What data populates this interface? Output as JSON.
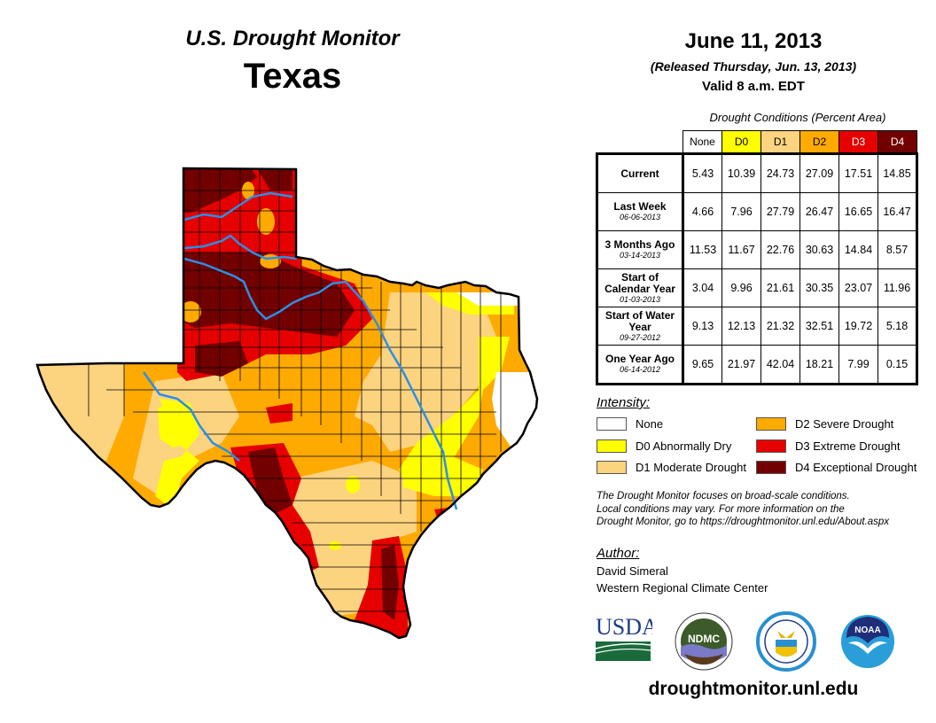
{
  "header": {
    "title": "U.S. Drought Monitor",
    "state": "Texas",
    "date": "June 11, 2013",
    "released": "(Released Thursday, Jun. 13, 2013)",
    "valid": "Valid 8 a.m. EDT"
  },
  "table": {
    "caption": "Drought Conditions (Percent Area)",
    "columns": [
      {
        "label": "None",
        "color": "#ffffff",
        "text_color": "#000000"
      },
      {
        "label": "D0",
        "color": "#ffff00",
        "text_color": "#000000"
      },
      {
        "label": "D1",
        "color": "#fcd37f",
        "text_color": "#000000"
      },
      {
        "label": "D2",
        "color": "#ffaa00",
        "text_color": "#000000"
      },
      {
        "label": "D3",
        "color": "#e60000",
        "text_color": "#ffffff"
      },
      {
        "label": "D4",
        "color": "#730000",
        "text_color": "#ffffff"
      }
    ],
    "rows": [
      {
        "label": "Current",
        "date": "",
        "values": [
          "5.43",
          "10.39",
          "24.73",
          "27.09",
          "17.51",
          "14.85"
        ]
      },
      {
        "label": "Last Week",
        "date": "06-06-2013",
        "values": [
          "4.66",
          "7.96",
          "27.79",
          "26.47",
          "16.65",
          "16.47"
        ]
      },
      {
        "label": "3 Months Ago",
        "date": "03-14-2013",
        "values": [
          "11.53",
          "11.67",
          "22.76",
          "30.63",
          "14.84",
          "8.57"
        ]
      },
      {
        "label": "Start of Calendar Year",
        "date": "01-03-2013",
        "values": [
          "3.04",
          "9.96",
          "21.61",
          "30.35",
          "23.07",
          "11.96"
        ]
      },
      {
        "label": "Start of Water Year",
        "date": "09-27-2012",
        "values": [
          "9.13",
          "12.13",
          "21.32",
          "32.51",
          "19.72",
          "5.18"
        ]
      },
      {
        "label": "One Year Ago",
        "date": "06-14-2012",
        "values": [
          "9.65",
          "21.97",
          "42.04",
          "18.21",
          "7.99",
          "0.15"
        ]
      }
    ]
  },
  "legend": {
    "title": "Intensity:",
    "items": [
      {
        "label": "None",
        "color": "#ffffff"
      },
      {
        "label": "D0 Abnormally Dry",
        "color": "#ffff00"
      },
      {
        "label": "D1 Moderate Drought",
        "color": "#fcd37f"
      },
      {
        "label": "D2 Severe Drought",
        "color": "#ffaa00"
      },
      {
        "label": "D3 Extreme Drought",
        "color": "#e60000"
      },
      {
        "label": "D4 Exceptional Drought",
        "color": "#730000"
      }
    ]
  },
  "note": {
    "line1": "The Drought Monitor focuses on broad-scale conditions.",
    "line2": "Local conditions may vary. For more information on the",
    "line3": "Drought Monitor, go to https://droughtmonitor.unl.edu/About.aspx"
  },
  "author": {
    "title": "Author:",
    "name": "David Simeral",
    "org": "Western Regional Climate Center"
  },
  "logos": {
    "usda": "USDA",
    "ndmc": "NDMC",
    "noaa": "NOAA"
  },
  "website": "droughtmonitor.unl.edu",
  "map_colors": {
    "river": "#2b8fe6",
    "border": "#000000"
  }
}
